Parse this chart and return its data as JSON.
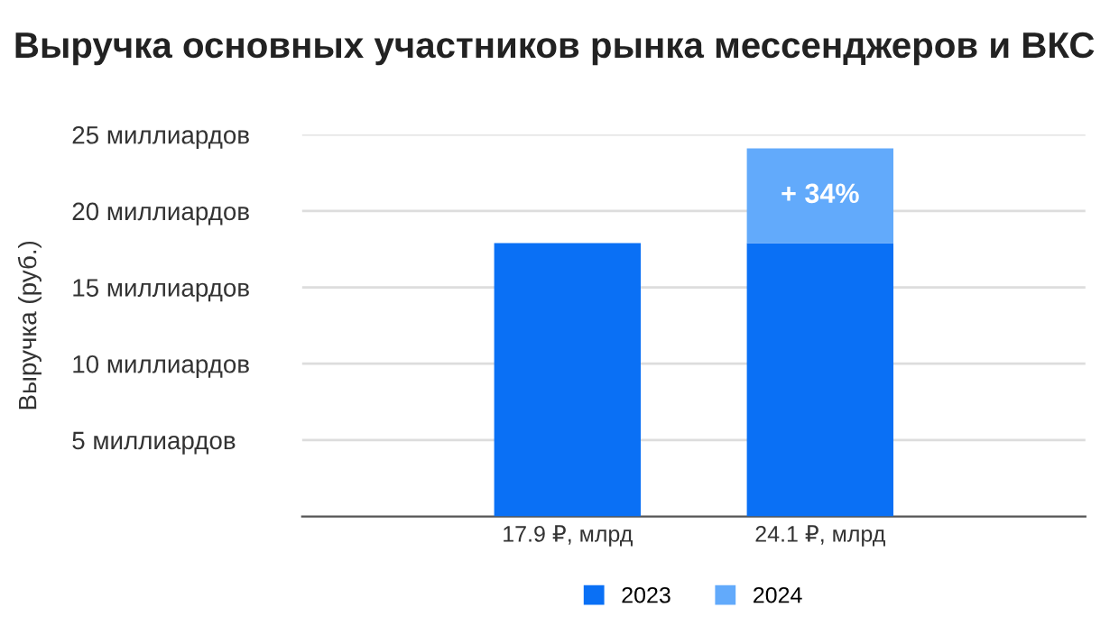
{
  "chart_data": {
    "type": "bar",
    "title": "Выручка основных участников рынка мессенджеров и ВКС",
    "ylabel": "Выручка (руб.)",
    "categories": [
      "17.9 ₽, млрд",
      "24.1 ₽, млрд"
    ],
    "stacked": true,
    "series": [
      {
        "name": "2023",
        "color": "#0a70f5",
        "values": [
          17.9,
          17.9
        ]
      },
      {
        "name": "2024",
        "color": "#62aafb",
        "values": [
          null,
          6.2
        ]
      }
    ],
    "ylim": [
      0,
      25
    ],
    "yticks": [
      {
        "value": 5,
        "label": "5 миллиардов"
      },
      {
        "value": 10,
        "label": "10 миллиардов"
      },
      {
        "value": 15,
        "label": "15 миллиардов"
      },
      {
        "value": 20,
        "label": "20 миллиардов"
      },
      {
        "value": 25,
        "label": "25 миллиардов"
      }
    ],
    "annotations": [
      "+ 34%"
    ],
    "grid": "y",
    "legend": "bottom"
  }
}
